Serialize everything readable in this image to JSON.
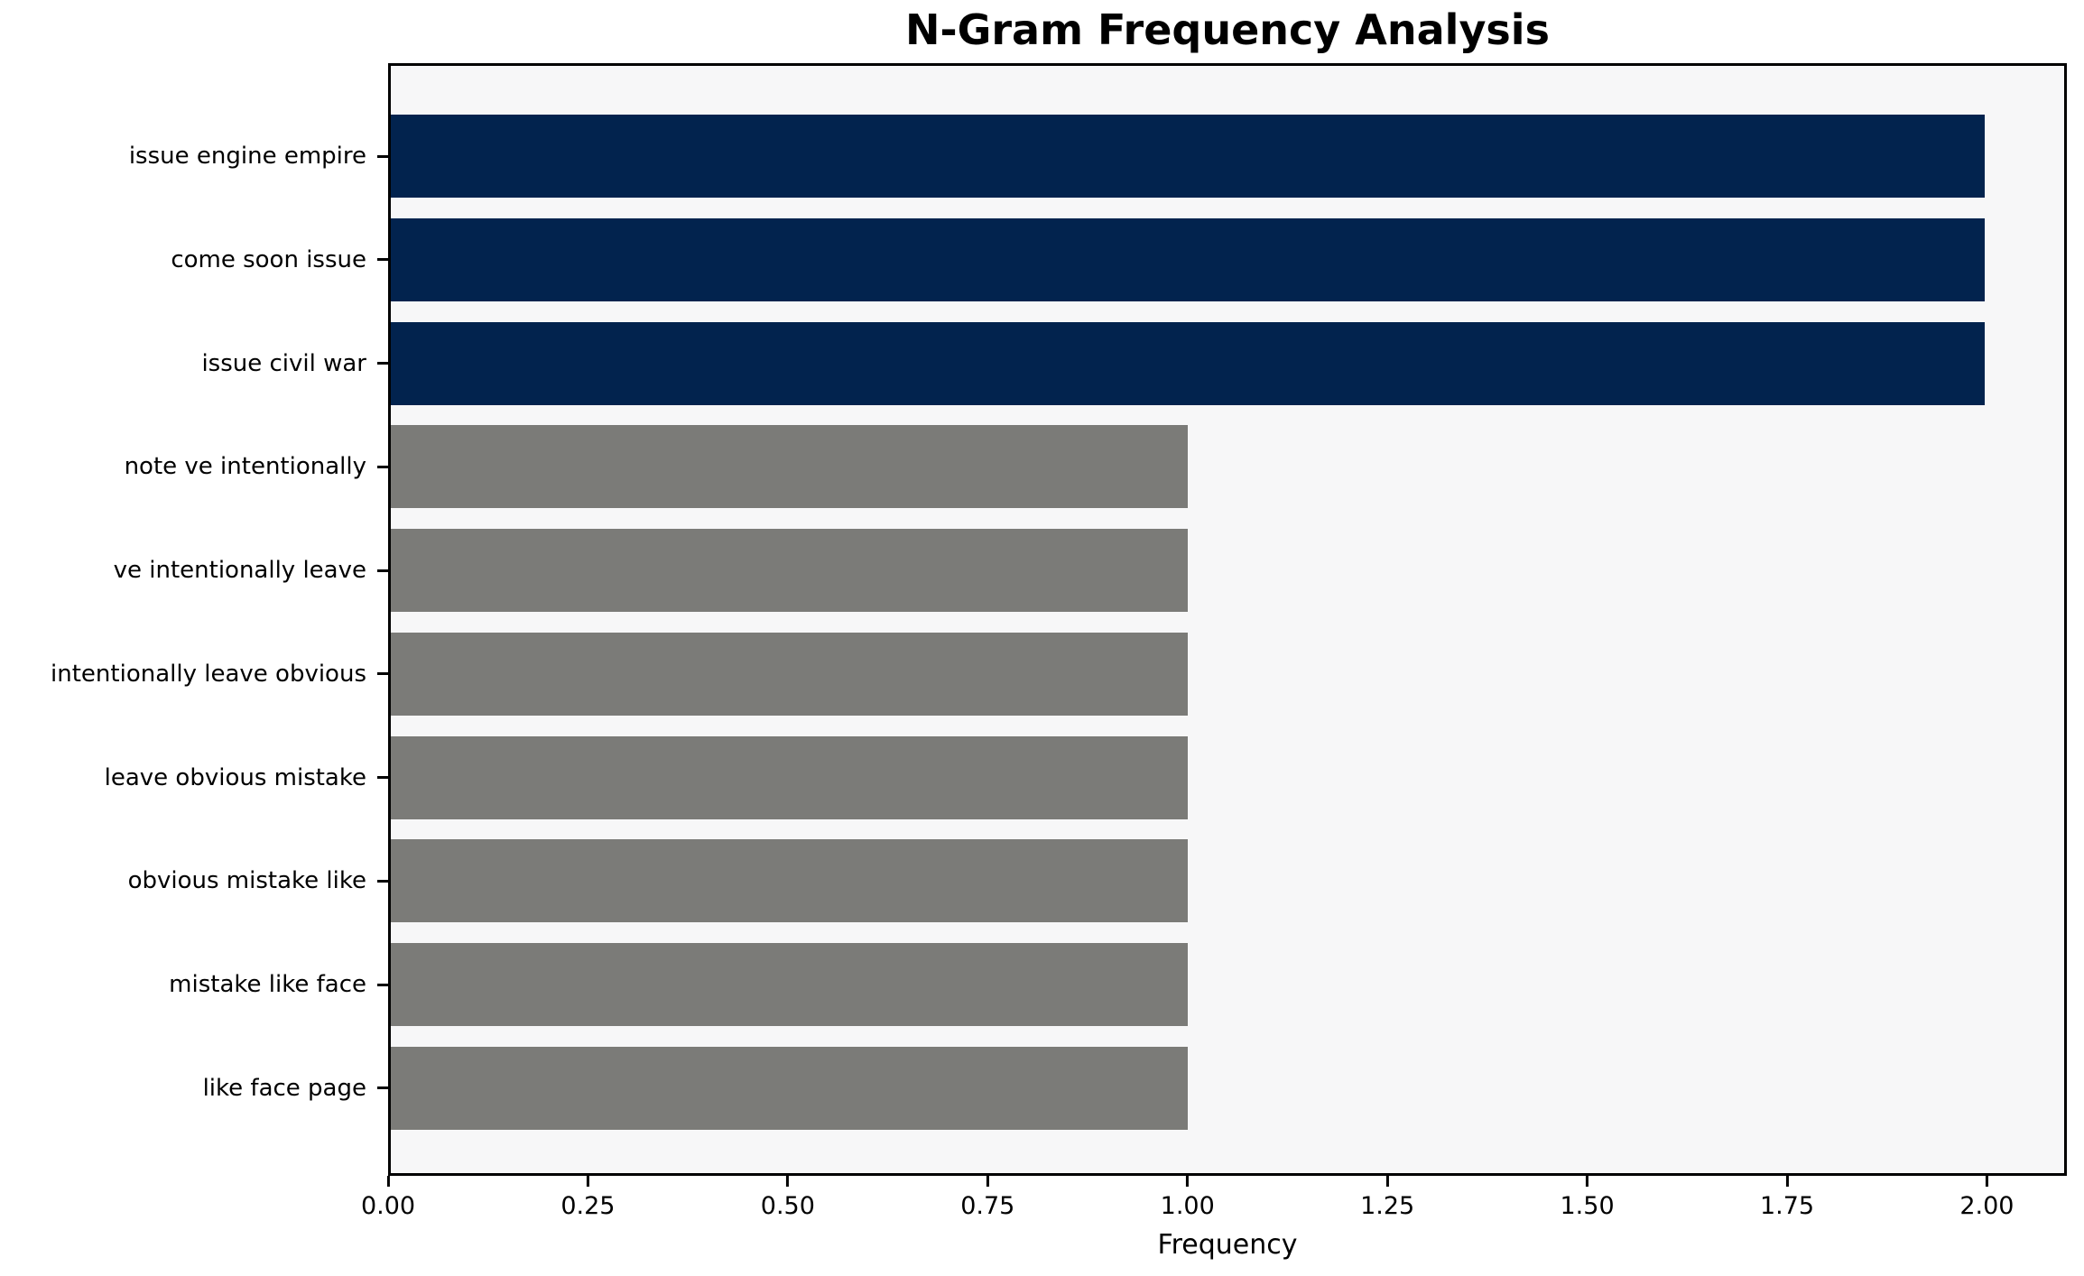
{
  "chart_data": {
    "type": "bar",
    "orientation": "horizontal",
    "title": "N-Gram Frequency Analysis",
    "xlabel": "Frequency",
    "ylabel": "",
    "categories": [
      "issue engine empire",
      "come soon issue",
      "issue civil war",
      "note ve intentionally",
      "ve intentionally leave",
      "intentionally leave obvious",
      "leave obvious mistake",
      "obvious mistake like",
      "mistake like face",
      "like face page"
    ],
    "values": [
      2,
      2,
      2,
      1,
      1,
      1,
      1,
      1,
      1,
      1
    ],
    "bar_colors": [
      "#02234E",
      "#02234E",
      "#02234E",
      "#7B7B78",
      "#7B7B78",
      "#7B7B78",
      "#7B7B78",
      "#7B7B78",
      "#7B7B78",
      "#7B7B78"
    ],
    "xlim": [
      0,
      2.1
    ],
    "xticks": [
      0,
      0.25,
      0.5,
      0.75,
      1.0,
      1.25,
      1.5,
      1.75,
      2.0
    ],
    "xtick_labels": [
      "0.00",
      "0.25",
      "0.50",
      "0.75",
      "1.00",
      "1.25",
      "1.50",
      "1.75",
      "2.00"
    ],
    "grid": false,
    "legend": null,
    "plot_background": "#F7F7F8",
    "figure_background": "#FFFFFF",
    "spine_color": "#000000"
  }
}
